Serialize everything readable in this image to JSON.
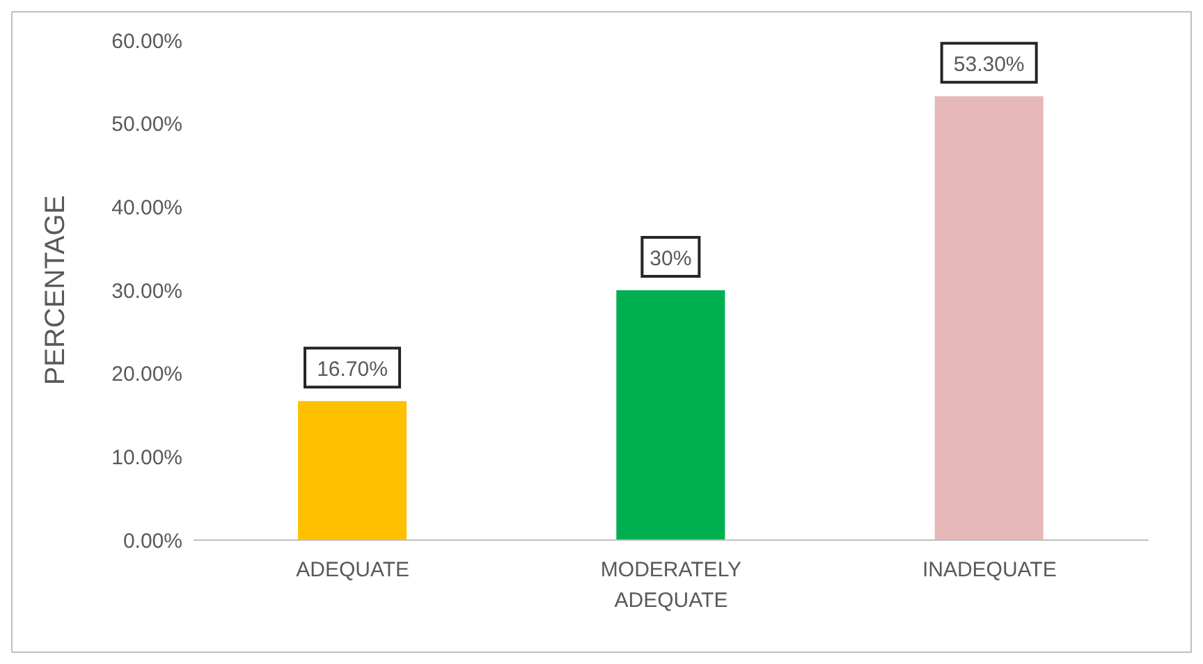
{
  "chart_data": {
    "type": "bar",
    "ylabel": "PERCENTAGE",
    "categories": [
      "ADEQUATE",
      "MODERATELY ADEQUATE",
      "INADEQUATE"
    ],
    "values": [
      16.7,
      30,
      53.3
    ],
    "colors": [
      "#ffc000",
      "#00b050",
      "#e6b9b8"
    ],
    "value_labels": [
      "16.70%",
      "30%",
      "53.30%"
    ],
    "ylim": [
      0,
      60
    ],
    "yticks": [
      {
        "value": 0,
        "label": "0.00%"
      },
      {
        "value": 10,
        "label": "10.00%"
      },
      {
        "value": 20,
        "label": "20.00%"
      },
      {
        "value": 30,
        "label": "30.00%"
      },
      {
        "value": 40,
        "label": "40.00%"
      },
      {
        "value": 50,
        "label": "50.00%"
      },
      {
        "value": 60,
        "label": "60.00%"
      }
    ],
    "grid": false,
    "legend": false
  }
}
